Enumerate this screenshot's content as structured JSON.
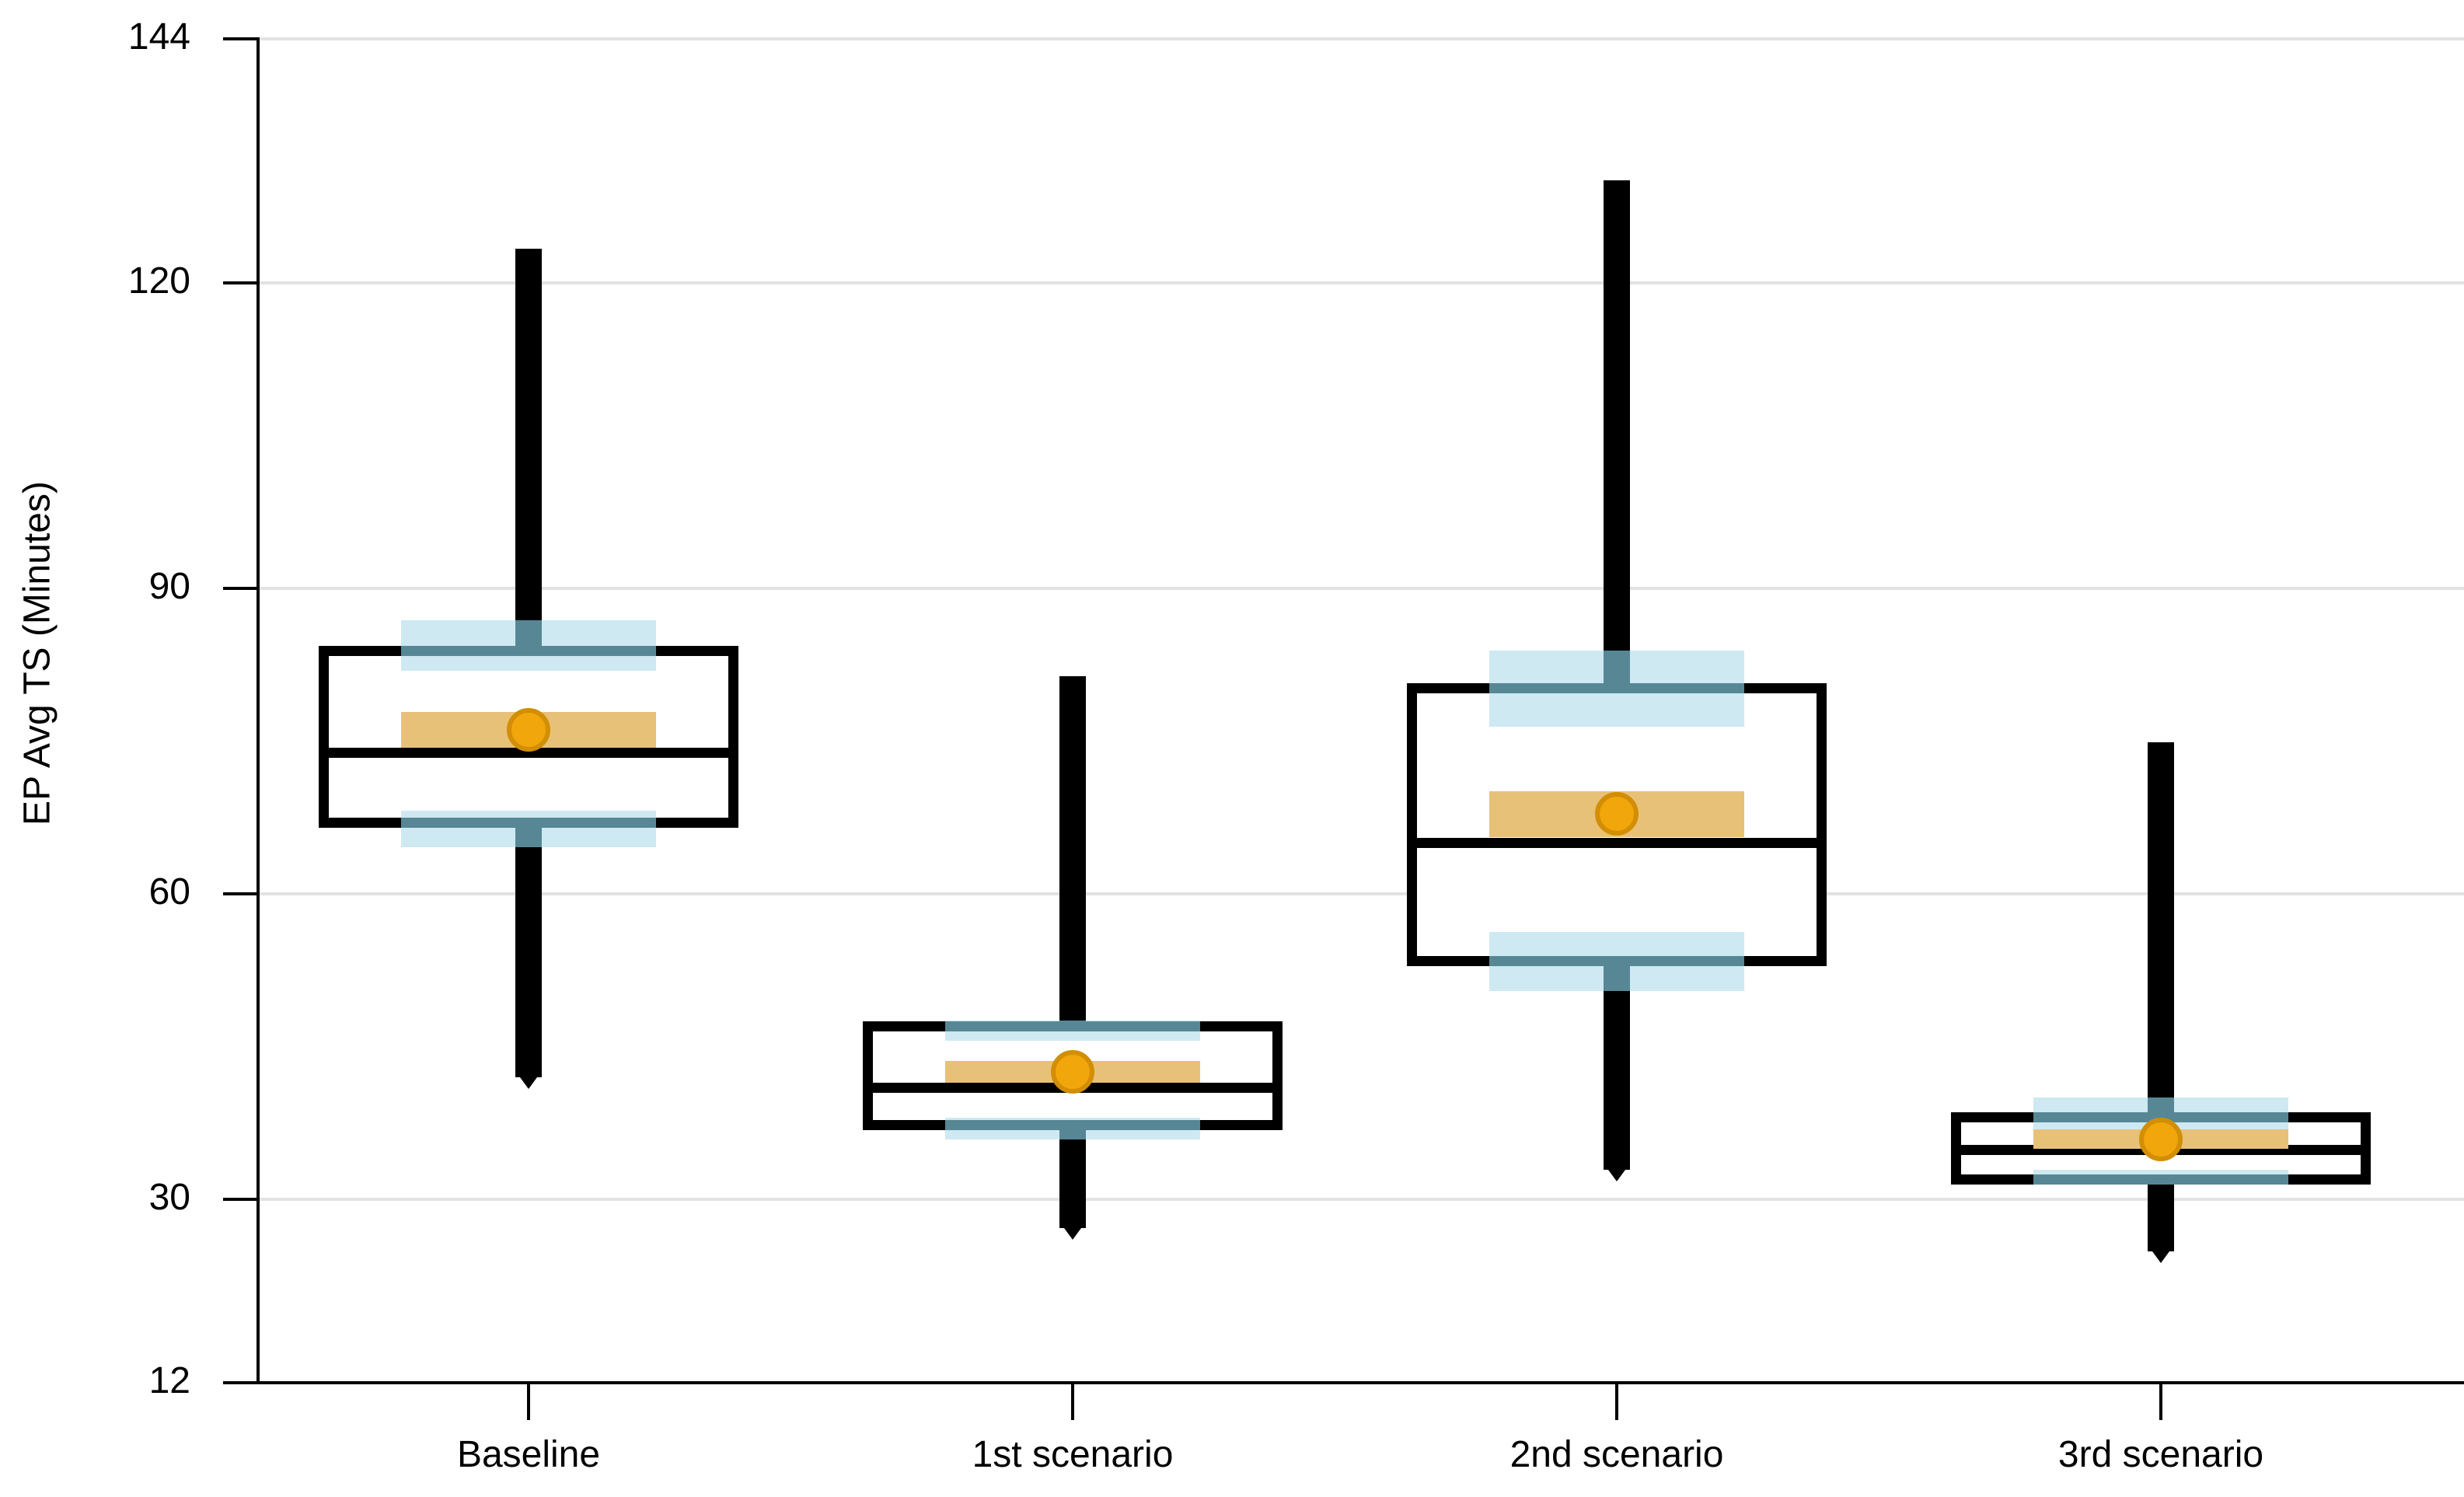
{
  "chart_data": {
    "type": "box",
    "title": "",
    "xlabel": "",
    "ylabel": "EP Avg TS (Minutes)",
    "ylim": [
      12,
      144
    ],
    "yticks": [
      144,
      120,
      90,
      60,
      30,
      12
    ],
    "grid": "horizontal",
    "legend": "none",
    "categories": [
      "Baseline",
      "1st scenario",
      "2nd scenario",
      "3rd scenario"
    ],
    "series": [
      {
        "name": "Baseline",
        "min": 42.0,
        "q1": 67.0,
        "median": 73.9,
        "mean": 76.1,
        "q3": 83.9,
        "max": 123.4,
        "mean_ci": [
          74.4,
          77.9
        ],
        "q1_ci": [
          64.6,
          68.2
        ],
        "q3_ci": [
          81.9,
          86.9
        ]
      },
      {
        "name": "1st scenario",
        "min": 27.2,
        "q1": 37.3,
        "median": 41.0,
        "mean": 42.5,
        "q3": 47.0,
        "max": 81.4,
        "mean_ci": [
          41.5,
          43.6
        ],
        "q1_ci": [
          35.9,
          38.0
        ],
        "q3_ci": [
          45.6,
          47.6
        ]
      },
      {
        "name": "2nd scenario",
        "min": 32.9,
        "q1": 53.4,
        "median": 65.0,
        "mean": 67.9,
        "q3": 80.2,
        "max": 130.1,
        "mean_ci": [
          65.6,
          70.1
        ],
        "q1_ci": [
          50.5,
          56.3
        ],
        "q3_ci": [
          76.4,
          83.9
        ]
      },
      {
        "name": "3rd scenario",
        "min": 24.9,
        "q1": 32.0,
        "median": 34.9,
        "mean": 35.9,
        "q3": 38.1,
        "max": 74.9,
        "mean_ci": [
          35.0,
          36.9
        ],
        "q1_ci": [
          31.5,
          32.9
        ],
        "q3_ci": [
          36.9,
          40.0
        ]
      }
    ],
    "colors": {
      "whisker": "#000000",
      "box_border": "#000000",
      "box_fill": "#ffffff",
      "median": "#000000",
      "ci_band": "#cee9f2",
      "ci_band_overlap": "#578795",
      "mean_band": "#e8c179",
      "mean_dot": "#f1a60b",
      "mean_dot_border": "#d28e04",
      "gridline": "#e2e2e2",
      "axis": "#000000",
      "text": "#000000"
    }
  }
}
